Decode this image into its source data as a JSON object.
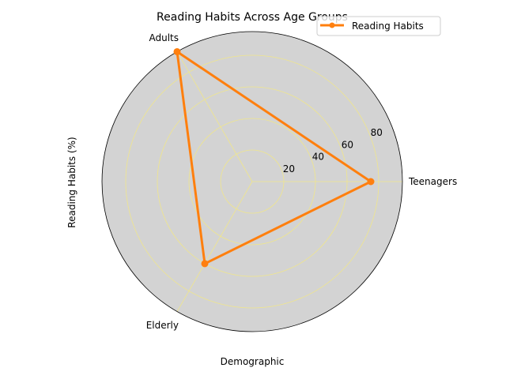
{
  "chart_data": {
    "type": "radar",
    "title": "Reading Habits Across Age Groups",
    "xlabel": "Demographic",
    "ylabel": "Reading Habits (%)",
    "categories": [
      "Teenagers",
      "Adults",
      "Elderly"
    ],
    "category_angles_deg": [
      0,
      120,
      240
    ],
    "series": [
      {
        "name": "Reading Habits",
        "values": [
          75,
          95,
          60
        ],
        "color": "#ff7f0e"
      }
    ],
    "radial_ticks": [
      20,
      40,
      60,
      80
    ],
    "rlim": [
      0,
      95
    ],
    "grid": true,
    "grid_color": "#f0e68c",
    "plot_background": "#d3d3d3",
    "legend_position": "top-right"
  }
}
